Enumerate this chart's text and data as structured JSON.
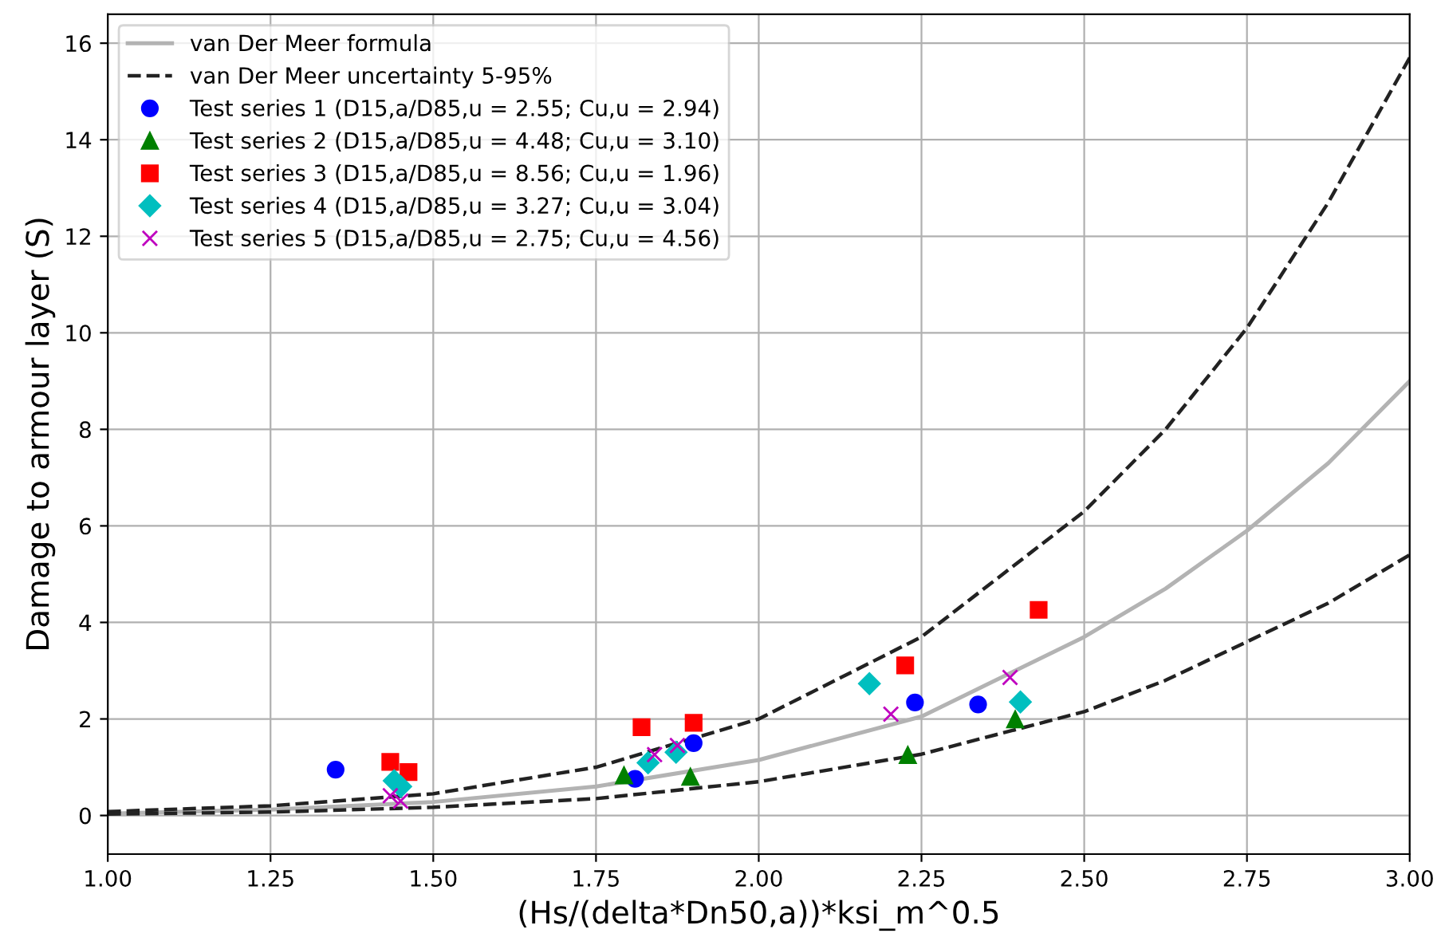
{
  "chart_data": {
    "type": "scatter",
    "xlabel": "(Hs/(delta*Dn50,a))*ksi_m^0.5",
    "ylabel": "Damage to armour layer (S)",
    "xlim": [
      1.0,
      3.0
    ],
    "xticks": [
      {
        "value": 1.0,
        "label": "1.00"
      },
      {
        "value": 1.25,
        "label": "1.25"
      },
      {
        "value": 1.5,
        "label": "1.50"
      },
      {
        "value": 1.75,
        "label": "1.75"
      },
      {
        "value": 2.0,
        "label": "2.00"
      },
      {
        "value": 2.25,
        "label": "2.25"
      },
      {
        "value": 2.5,
        "label": "2.50"
      },
      {
        "value": 2.75,
        "label": "2.75"
      },
      {
        "value": 3.0,
        "label": "3.00"
      }
    ],
    "ylim": [
      -0.8,
      16.6
    ],
    "yticks": [
      0,
      2,
      4,
      6,
      8,
      10,
      12,
      14,
      16
    ],
    "grid": true,
    "legend": "top left",
    "series": [
      {
        "name": "van Der Meer formula",
        "type": "line",
        "line_style": "solid",
        "marker": "none",
        "color": "#b3b3b3",
        "x": [
          1.0,
          1.25,
          1.5,
          1.75,
          2.0,
          2.25,
          2.5,
          2.625,
          2.75,
          2.875,
          3.0
        ],
        "values": [
          0.04,
          0.12,
          0.28,
          0.6,
          1.15,
          2.05,
          3.7,
          4.7,
          5.9,
          7.3,
          9.0
        ]
      },
      {
        "name": "van Der Meer uncertainty 5-95%",
        "type": "line",
        "line_style": "dashed",
        "marker": "none",
        "color": "#222222",
        "x": [
          1.0,
          1.25,
          1.5,
          1.75,
          2.0,
          2.25,
          2.5,
          2.625,
          2.75,
          2.875,
          3.0
        ],
        "values": [
          0.08,
          0.2,
          0.45,
          1.0,
          2.0,
          3.7,
          6.3,
          8.0,
          10.1,
          12.7,
          15.7
        ]
      },
      {
        "type": "line",
        "line_style": "dashed",
        "marker": "none",
        "color": "#222222",
        "x": [
          1.0,
          1.25,
          1.5,
          1.75,
          2.0,
          2.25,
          2.5,
          2.625,
          2.75,
          2.875,
          3.0
        ],
        "values": [
          0.03,
          0.07,
          0.17,
          0.35,
          0.7,
          1.27,
          2.15,
          2.8,
          3.6,
          4.4,
          5.4
        ]
      },
      {
        "name": "Test series 1 (D15,a/D85,u = 2.55; Cu,u = 2.94)",
        "marker": "circle",
        "color": "#0000ff",
        "x": [
          1.35,
          1.81,
          1.9,
          2.24,
          2.337
        ],
        "values": [
          0.95,
          0.76,
          1.5,
          2.34,
          2.3
        ]
      },
      {
        "name": "Test series 2 (D15,a/D85,u = 4.48; Cu,u = 3.10)",
        "marker": "triangle",
        "color": "#008000",
        "x": [
          1.793,
          1.895,
          2.229,
          2.394
        ],
        "values": [
          0.83,
          0.8,
          1.25,
          1.99
        ]
      },
      {
        "name": "Test series 3 (D15,a/D85,u = 8.56; Cu,u = 1.96)",
        "marker": "square",
        "color": "#ff0000",
        "x": [
          1.434,
          1.462,
          1.82,
          1.9,
          2.225,
          2.43
        ],
        "values": [
          1.11,
          0.9,
          1.83,
          1.92,
          3.11,
          4.26
        ]
      },
      {
        "name": "Test series 4 (D15,a/D85,u = 3.27; Cu,u = 3.04)",
        "marker": "diamond",
        "color": "#00bfbf",
        "x": [
          1.44,
          1.45,
          1.83,
          1.873,
          2.17,
          2.402
        ],
        "values": [
          0.72,
          0.6,
          1.09,
          1.31,
          2.73,
          2.35
        ]
      },
      {
        "name": "Test series 5 (D15,a/D85,u = 2.75; Cu,u = 4.56)",
        "marker": "cross",
        "color": "#bf00bf",
        "x": [
          1.434,
          1.45,
          1.84,
          1.875,
          2.203,
          2.386
        ],
        "values": [
          0.41,
          0.3,
          1.26,
          1.45,
          2.1,
          2.86
        ]
      }
    ]
  }
}
